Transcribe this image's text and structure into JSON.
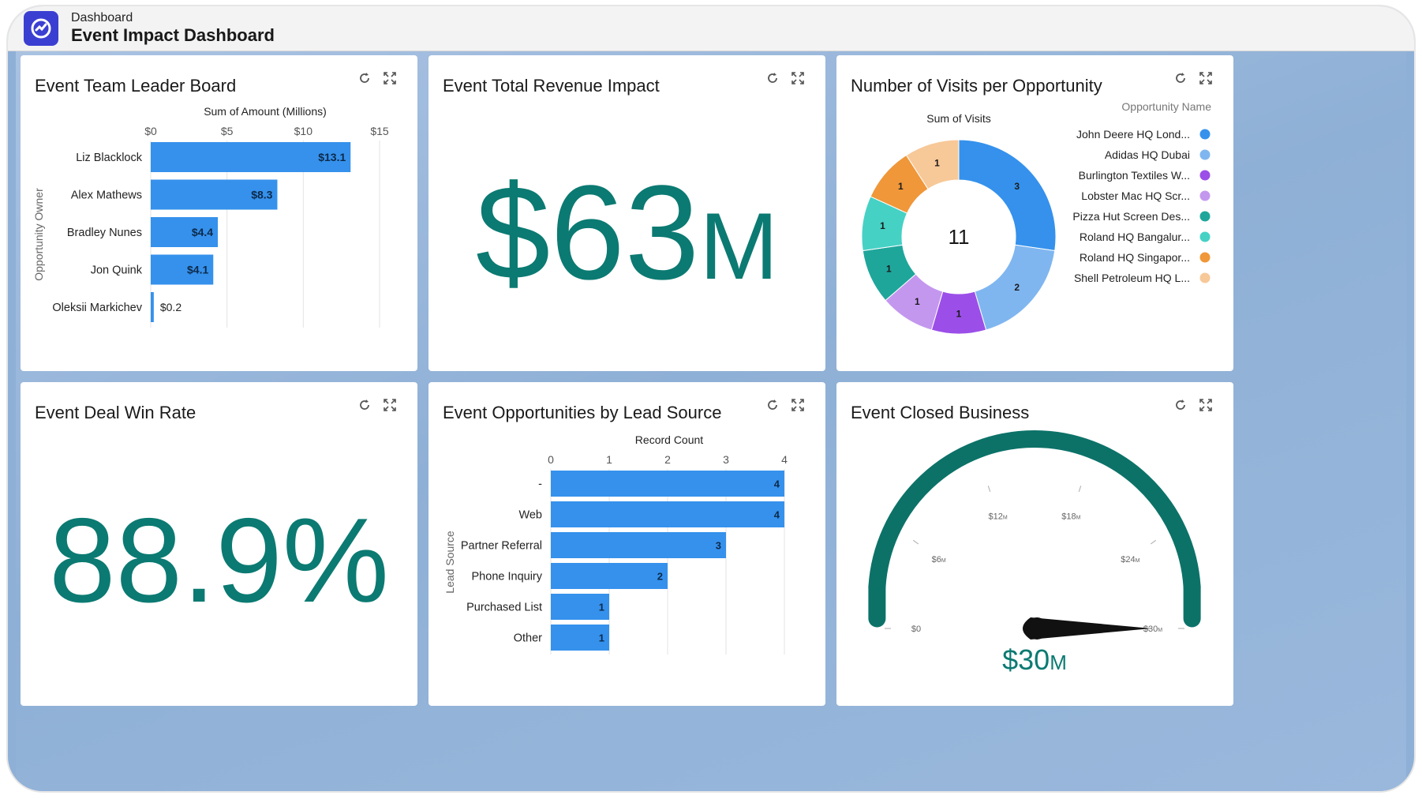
{
  "header": {
    "subtitle": "Dashboard",
    "title": "Event Impact Dashboard"
  },
  "colors": {
    "bar": "#3591ec",
    "teal": "#0b7a72",
    "gauge": "#0c7268"
  },
  "cards": {
    "leaderboard": {
      "title": "Event Team Leader Board"
    },
    "revenue": {
      "title": "Event Total Revenue Impact",
      "value": "$63",
      "suffix": "M"
    },
    "visits": {
      "title": "Number of Visits per Opportunity"
    },
    "winrate": {
      "title": "Event Deal Win Rate",
      "value": "88.9%"
    },
    "leadsource": {
      "title": "Event Opportunities by Lead Source"
    },
    "closed": {
      "title": "Event Closed Business",
      "value": "$30",
      "suffix": "M"
    }
  },
  "chart_data": [
    {
      "id": "leaderboard",
      "type": "bar",
      "orientation": "horizontal",
      "title": "",
      "xlabel": "Sum of Amount (Millions)",
      "ylabel": "Opportunity Owner",
      "x_ticks": [
        "$0",
        "$5",
        "$10",
        "$15"
      ],
      "xlim": [
        0,
        15
      ],
      "categories": [
        "Liz Blacklock",
        "Alex Mathews",
        "Bradley Nunes",
        "Jon Quink",
        "Oleksii Markichev"
      ],
      "values": [
        13.1,
        8.3,
        4.4,
        4.1,
        0.2
      ],
      "data_labels": [
        "$13.1",
        "$8.3",
        "$4.4",
        "$4.1",
        "$0.2"
      ],
      "grid": true
    },
    {
      "id": "visits",
      "type": "pie",
      "donut": true,
      "label": "Sum of Visits",
      "center_label": "11",
      "legend_title": "Opportunity Name",
      "legend_position": "right",
      "categories": [
        "John Deere HQ Lond...",
        "Adidas HQ Dubai",
        "Burlington Textiles W...",
        "Lobster Mac HQ Scr...",
        "Pizza Hut Screen Des...",
        "Roland HQ Bangalur...",
        "Roland HQ Singapor...",
        "Shell Petroleum HQ L..."
      ],
      "values": [
        3,
        2,
        1,
        1,
        1,
        1,
        1,
        1
      ],
      "colors": [
        "#3591ec",
        "#7fb6f0",
        "#9b4fe8",
        "#c497ef",
        "#1fa69b",
        "#46d1c5",
        "#f0973a",
        "#f7c898"
      ]
    },
    {
      "id": "leadsource",
      "type": "bar",
      "orientation": "horizontal",
      "title": "",
      "xlabel": "Record Count",
      "ylabel": "Lead Source",
      "x_ticks": [
        "0",
        "1",
        "2",
        "3",
        "4"
      ],
      "xlim": [
        0,
        4
      ],
      "categories": [
        "-",
        "Web",
        "Partner Referral",
        "Phone Inquiry",
        "Purchased List",
        "Other"
      ],
      "values": [
        4,
        4,
        3,
        2,
        1,
        1
      ],
      "grid": true
    },
    {
      "id": "closed",
      "type": "gauge",
      "value": 30,
      "value_label": "$30M",
      "range": [
        0,
        30
      ],
      "ticks": [
        0,
        6,
        12,
        18,
        24,
        30
      ],
      "tick_labels": [
        "$0",
        "$6",
        "$12",
        "$18",
        "$24",
        "$30"
      ],
      "tick_suffix": "M"
    }
  ]
}
